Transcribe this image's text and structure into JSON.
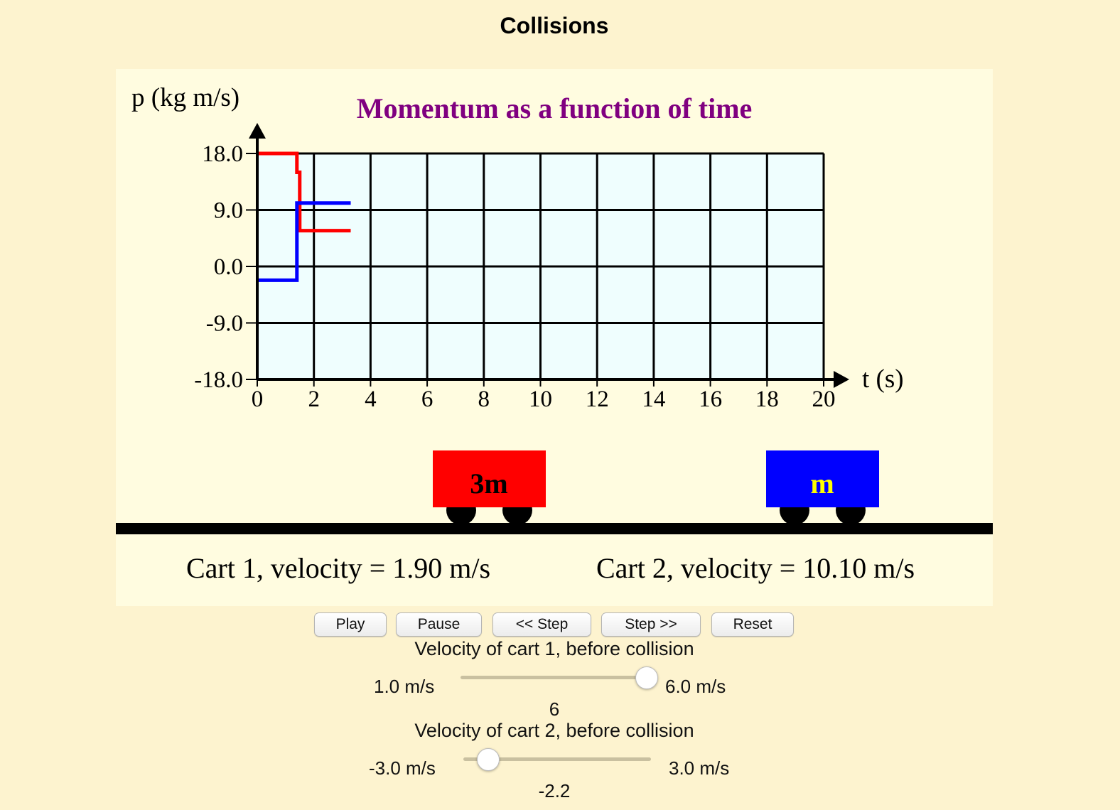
{
  "page": {
    "title": "Collisions"
  },
  "graph": {
    "title": "Momentum as a function of time",
    "y_axis_label": "p (kg m/s)",
    "x_axis_label": "t (s)",
    "title_color": "#800080",
    "background_color": "#effefe"
  },
  "chart_data": {
    "type": "line",
    "title": "Momentum as a function of time",
    "xlabel": "t (s)",
    "ylabel": "p (kg m/s)",
    "xlim": [
      0,
      20
    ],
    "ylim": [
      -18,
      18
    ],
    "x_ticks": [
      "0",
      "2",
      "4",
      "6",
      "8",
      "10",
      "12",
      "14",
      "16",
      "18",
      "20"
    ],
    "y_ticks": [
      "18.0",
      "9.0",
      "0.0",
      "-9.0",
      "-18.0"
    ],
    "grid": true,
    "series": [
      {
        "color": "#ff0000",
        "points": [
          [
            0,
            18.0
          ],
          [
            1.4,
            18.0
          ],
          [
            1.4,
            15.0
          ],
          [
            1.5,
            15.0
          ],
          [
            1.5,
            5.7
          ],
          [
            3.3,
            5.7
          ]
        ]
      },
      {
        "color": "#0000ff",
        "points": [
          [
            0,
            -2.2
          ],
          [
            1.4,
            -2.2
          ],
          [
            1.4,
            10.1
          ],
          [
            3.3,
            10.1
          ]
        ]
      }
    ]
  },
  "carts": {
    "cart1": {
      "label": "3m",
      "color": "#ff0000",
      "label_color": "#000000"
    },
    "cart2": {
      "label": "m",
      "color": "#0000ff",
      "label_color": "#ffff00"
    }
  },
  "readouts": {
    "cart1": "Cart 1, velocity = 1.90 m/s",
    "cart2": "Cart 2, velocity = 10.10 m/s"
  },
  "buttons": {
    "play": "Play",
    "pause": "Pause",
    "step_back": "<< Step",
    "step_forward": "Step >>",
    "reset": "Reset"
  },
  "sliders": {
    "cart1": {
      "label": "Velocity of cart 1, before collision",
      "min_label": "1.0 m/s",
      "max_label": "6.0 m/s",
      "min": 1.0,
      "max": 6.0,
      "value": 6,
      "value_text": "6"
    },
    "cart2": {
      "label": "Velocity of cart 2, before collision",
      "min_label": "-3.0 m/s",
      "max_label": "3.0 m/s",
      "min": -3.0,
      "max": 3.0,
      "value": -2.2,
      "value_text": "-2.2"
    }
  }
}
